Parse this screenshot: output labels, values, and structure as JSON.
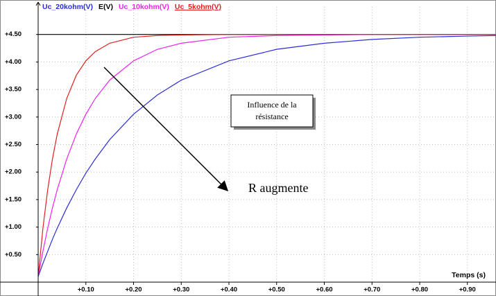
{
  "chart_data": {
    "type": "line",
    "x_label": "Temps (s)",
    "x": [
      0,
      0.01,
      0.02,
      0.03,
      0.04,
      0.06,
      0.08,
      0.1,
      0.12,
      0.15,
      0.2,
      0.25,
      0.3,
      0.4,
      0.5,
      0.6,
      0.7,
      0.8,
      0.9,
      0.96
    ],
    "series": [
      {
        "name": "Uc_20kohm(V)",
        "color": "#2b2bd8",
        "values": [
          0.1,
          0.34,
          0.56,
          0.78,
          0.98,
          1.35,
          1.68,
          1.98,
          2.24,
          2.59,
          3.05,
          3.4,
          3.67,
          4.02,
          4.23,
          4.34,
          4.41,
          4.45,
          4.47,
          4.48
        ]
      },
      {
        "name": "E(V)",
        "color": "#000000",
        "values": [
          4.5,
          4.5,
          4.5,
          4.5,
          4.5,
          4.5,
          4.5,
          4.5,
          4.5,
          4.5,
          4.5,
          4.5,
          4.5,
          4.5,
          4.5,
          4.5,
          4.5,
          4.5,
          4.5,
          4.5
        ]
      },
      {
        "name": "Uc_10kohm(V)",
        "color": "#ee22ee",
        "values": [
          0.1,
          0.56,
          0.98,
          1.35,
          1.68,
          2.24,
          2.69,
          3.05,
          3.34,
          3.67,
          4.02,
          4.23,
          4.34,
          4.45,
          4.48,
          4.49,
          4.5,
          4.5,
          4.5,
          4.5
        ]
      },
      {
        "name": "Uc_5kohm(V)",
        "color": "#e02020",
        "values": [
          0.1,
          0.98,
          1.68,
          2.24,
          2.69,
          3.34,
          3.76,
          4.02,
          4.19,
          4.34,
          4.45,
          4.48,
          4.49,
          4.5,
          4.5,
          4.5,
          4.5,
          4.5,
          4.5,
          4.5
        ]
      }
    ],
    "xlim": [
      0,
      0.96
    ],
    "ylim": [
      0,
      5
    ],
    "xticks": [
      {
        "value": 0.1,
        "label": "+0.10"
      },
      {
        "value": 0.2,
        "label": "+0.20"
      },
      {
        "value": 0.3,
        "label": "+0.30"
      },
      {
        "value": 0.4,
        "label": "+0.40"
      },
      {
        "value": 0.5,
        "label": "+0.50"
      },
      {
        "value": 0.6,
        "label": "+0.60"
      },
      {
        "value": 0.7,
        "label": "+0.70"
      },
      {
        "value": 0.8,
        "label": "+0.80"
      },
      {
        "value": 0.9,
        "label": "+0.90"
      }
    ],
    "yticks": [
      {
        "value": 0.5,
        "label": "+0.50"
      },
      {
        "value": 1.0,
        "label": "+1.00"
      },
      {
        "value": 1.5,
        "label": "+1.50"
      },
      {
        "value": 2.0,
        "label": "+2.00"
      },
      {
        "value": 2.5,
        "label": "+2.50"
      },
      {
        "value": 3.0,
        "label": "+3.00"
      },
      {
        "value": 3.5,
        "label": "+3.50"
      },
      {
        "value": 4.0,
        "label": "+4.00"
      },
      {
        "value": 4.5,
        "label": "+4.50"
      }
    ],
    "grid": true,
    "annotations": {
      "box": [
        "Influence de la",
        "résistance"
      ],
      "arrow_label": "R  augmente"
    }
  }
}
